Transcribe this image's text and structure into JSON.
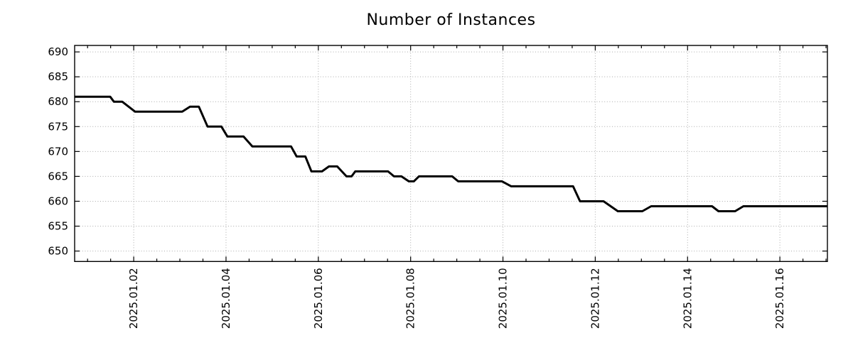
{
  "page": {
    "background": "#ffffff"
  },
  "chart_data": {
    "type": "line",
    "title": "Number of Instances",
    "xlabel": "",
    "ylabel": "",
    "legend": "none",
    "background": "#ffffff",
    "frame_color": "#000000",
    "text_color": "#000000",
    "grid": {
      "show": true,
      "style": "dotted",
      "color": "#ababab"
    },
    "x_axis": {
      "kind": "time",
      "unit": "day of 2025-01 (fractional)",
      "range": [
        0.72,
        17.03
      ],
      "minor_tick_step": 0.5,
      "tick_label_rotation_deg": -90,
      "major_ticks": [
        {
          "value": 2,
          "label": "2025.01.02"
        },
        {
          "value": 4,
          "label": "2025.01.04"
        },
        {
          "value": 6,
          "label": "2025.01.06"
        },
        {
          "value": 8,
          "label": "2025.01.08"
        },
        {
          "value": 10,
          "label": "2025.01.10"
        },
        {
          "value": 12,
          "label": "2025.01.12"
        },
        {
          "value": 14,
          "label": "2025.01.14"
        },
        {
          "value": 16,
          "label": "2025.01.16"
        }
      ]
    },
    "y_axis": {
      "range": [
        647.9,
        691.3
      ],
      "ticks": [
        {
          "value": 650,
          "label": "650"
        },
        {
          "value": 655,
          "label": "655"
        },
        {
          "value": 660,
          "label": "660"
        },
        {
          "value": 665,
          "label": "665"
        },
        {
          "value": 670,
          "label": "670"
        },
        {
          "value": 675,
          "label": "675"
        },
        {
          "value": 680,
          "label": "680"
        },
        {
          "value": 685,
          "label": "685"
        },
        {
          "value": 690,
          "label": "690"
        }
      ]
    },
    "series": [
      {
        "name": "Number of Instances",
        "color": "#000000",
        "line_width": 3,
        "points": [
          [
            0.72,
            681
          ],
          [
            1.49,
            681
          ],
          [
            1.57,
            680
          ],
          [
            1.75,
            680
          ],
          [
            2.03,
            678
          ],
          [
            3.05,
            678
          ],
          [
            3.22,
            679
          ],
          [
            3.41,
            679
          ],
          [
            3.6,
            675
          ],
          [
            3.9,
            675
          ],
          [
            4.03,
            673
          ],
          [
            4.38,
            673
          ],
          [
            4.57,
            671
          ],
          [
            5.41,
            671
          ],
          [
            5.53,
            669
          ],
          [
            5.72,
            669
          ],
          [
            5.85,
            666
          ],
          [
            6.08,
            666
          ],
          [
            6.23,
            667
          ],
          [
            6.41,
            667
          ],
          [
            6.61,
            665
          ],
          [
            6.72,
            665
          ],
          [
            6.8,
            666
          ],
          [
            7.51,
            666
          ],
          [
            7.64,
            665
          ],
          [
            7.8,
            665
          ],
          [
            7.96,
            664
          ],
          [
            8.07,
            664
          ],
          [
            8.18,
            665
          ],
          [
            8.9,
            665
          ],
          [
            9.03,
            664
          ],
          [
            9.98,
            664
          ],
          [
            10.18,
            663
          ],
          [
            11.52,
            663
          ],
          [
            11.67,
            660
          ],
          [
            12.18,
            660
          ],
          [
            12.49,
            658
          ],
          [
            13.02,
            658
          ],
          [
            13.21,
            659
          ],
          [
            14.53,
            659
          ],
          [
            14.67,
            658
          ],
          [
            15.03,
            658
          ],
          [
            15.21,
            659
          ],
          [
            17.03,
            659
          ]
        ]
      }
    ]
  }
}
